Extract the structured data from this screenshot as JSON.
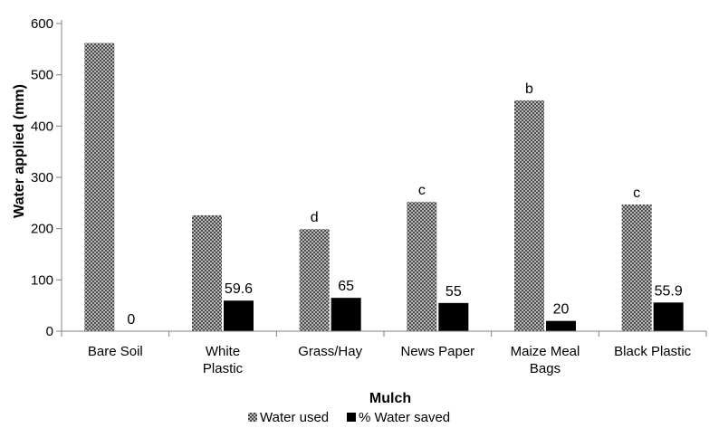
{
  "chart_data": {
    "type": "bar",
    "xlabel": "Mulch",
    "ylabel": "Water applied (mm)",
    "ylim": [
      0,
      600
    ],
    "yticks": [
      0,
      100,
      200,
      300,
      400,
      500,
      600
    ],
    "grid": false,
    "legend_position": "bottom",
    "categories": [
      [
        "Bare Soil"
      ],
      [
        "White",
        "Plastic"
      ],
      [
        "Grass/Hay"
      ],
      [
        "News Paper"
      ],
      [
        "Maize Meal",
        "Bags"
      ],
      [
        "Black Plastic"
      ]
    ],
    "series": [
      {
        "name": "Water used",
        "pattern": "grey-checker",
        "color": "#8c8c8c",
        "values": [
          562,
          226,
          199,
          252,
          450,
          247
        ],
        "labels": [
          "",
          "",
          "d",
          "c",
          "b",
          "c"
        ]
      },
      {
        "name": "% Water saved",
        "color": "#000000",
        "values": [
          0,
          59.6,
          65,
          55,
          20,
          55.9
        ],
        "labels": [
          "0",
          "59.6",
          "65",
          "55",
          "20",
          "55.9"
        ]
      }
    ]
  }
}
